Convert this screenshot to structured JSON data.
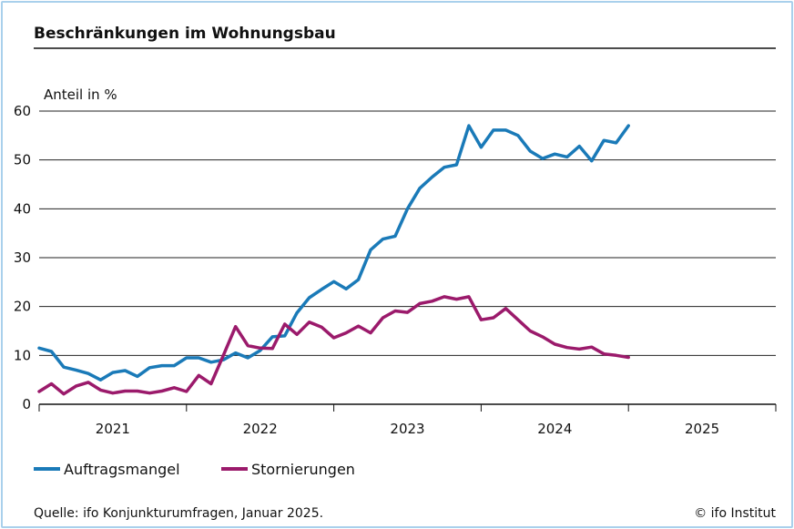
{
  "chart_data": {
    "type": "line",
    "title": "Beschränkungen im Wohnungsbau",
    "ylabel": "Anteil in %",
    "xlabel": "",
    "ylim": [
      0,
      60
    ],
    "yticks": [
      0,
      10,
      20,
      30,
      40,
      50,
      60
    ],
    "xrange": [
      "2021-01",
      "2025-12"
    ],
    "x_tick_labels": [
      "2021",
      "2022",
      "2023",
      "2024",
      "2025"
    ],
    "x_start": "2021-01",
    "frequency": "monthly",
    "grid": true,
    "legend_position": "bottom",
    "series": [
      {
        "name": "Auftragsmangel",
        "color": "#1a7ab8",
        "values": [
          11.5,
          10.8,
          7.6,
          7.0,
          6.3,
          5.0,
          6.5,
          6.9,
          5.7,
          7.5,
          7.9,
          7.9,
          9.5,
          9.5,
          8.6,
          9.1,
          10.5,
          9.5,
          11.0,
          13.8,
          14.0,
          18.7,
          21.8,
          23.5,
          25.1,
          23.6,
          25.5,
          31.6,
          33.8,
          34.4,
          40.0,
          44.2,
          46.5,
          48.5,
          49.0,
          57.0,
          52.6,
          56.1,
          56.1,
          55.0,
          51.8,
          50.3,
          51.2,
          50.6,
          52.8,
          49.8,
          54.0,
          53.5,
          57.0
        ]
      },
      {
        "name": "Stornierungen",
        "color": "#9b1a6b",
        "values": [
          2.6,
          4.2,
          2.1,
          3.7,
          4.5,
          2.9,
          2.3,
          2.7,
          2.7,
          2.3,
          2.7,
          3.4,
          2.6,
          5.9,
          4.2,
          10.0,
          15.9,
          12.0,
          11.5,
          11.4,
          16.4,
          14.3,
          16.8,
          15.8,
          13.6,
          14.6,
          16.0,
          14.6,
          17.7,
          19.1,
          18.8,
          20.6,
          21.1,
          22.0,
          21.5,
          22.0,
          17.3,
          17.7,
          19.6,
          17.3,
          15.0,
          13.8,
          12.3,
          11.6,
          11.3,
          11.7,
          10.3,
          10.0,
          9.6
        ]
      }
    ],
    "source": "Quelle: ifo Konjunkturumfragen, Januar 2025.",
    "credit": "© ifo Institut"
  }
}
